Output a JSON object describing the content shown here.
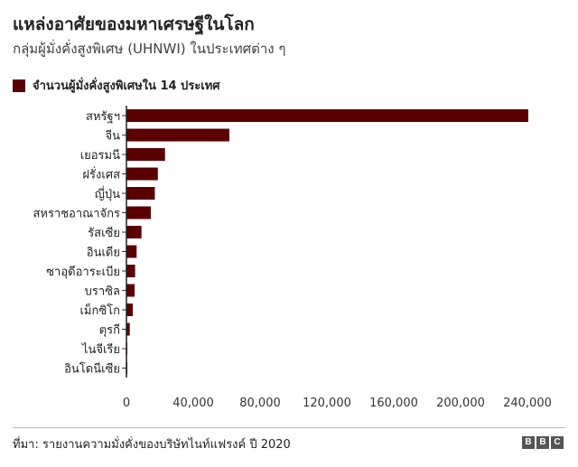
{
  "title": "แหล่งอาศัยของมหาเศรษฐีในโลก",
  "subtitle": "กลุ่มผู้มั่งคั่งสูงพิเศษ (UHNWI) ในประเทศต่าง ๆ",
  "source": "ที่มา: รายงานความมั่งคั่งของบริษัทไนท์แฟรงค์ ปี 2020",
  "logo": [
    "B",
    "B",
    "C"
  ],
  "chart_data": {
    "type": "bar",
    "orientation": "horizontal",
    "bar_color": "#5a0000",
    "legend_position": "top-left",
    "grid": false,
    "categories": [
      "สหรัฐฯ",
      "จีน",
      "เยอรมนี",
      "ฝรั่งเศส",
      "ญี่ปุ่น",
      "สหราชอาณาจักร",
      "รัสเซีย",
      "อินเดีย",
      "ซาอุดีอาระเบีย",
      "บราซิล",
      "เม็กซิโก",
      "ตุรกี",
      "ไนจีเรีย",
      "อินโดนีเซีย"
    ],
    "series": [
      {
        "name": "จำนวนผู้มั่งคั่งสูงพิเศษใน 14 ประเทศ",
        "values": [
          240500,
          61600,
          23100,
          18800,
          17000,
          14600,
          9000,
          6100,
          5200,
          4900,
          3800,
          2000,
          300,
          300
        ]
      }
    ],
    "xlim": [
      0,
      240000
    ],
    "xticks": [
      0,
      40000,
      80000,
      120000,
      160000,
      200000,
      240000
    ],
    "xtick_labels": [
      "0",
      "40,000",
      "80,000",
      "120,000",
      "160,000",
      "200,000",
      "240,000"
    ]
  }
}
